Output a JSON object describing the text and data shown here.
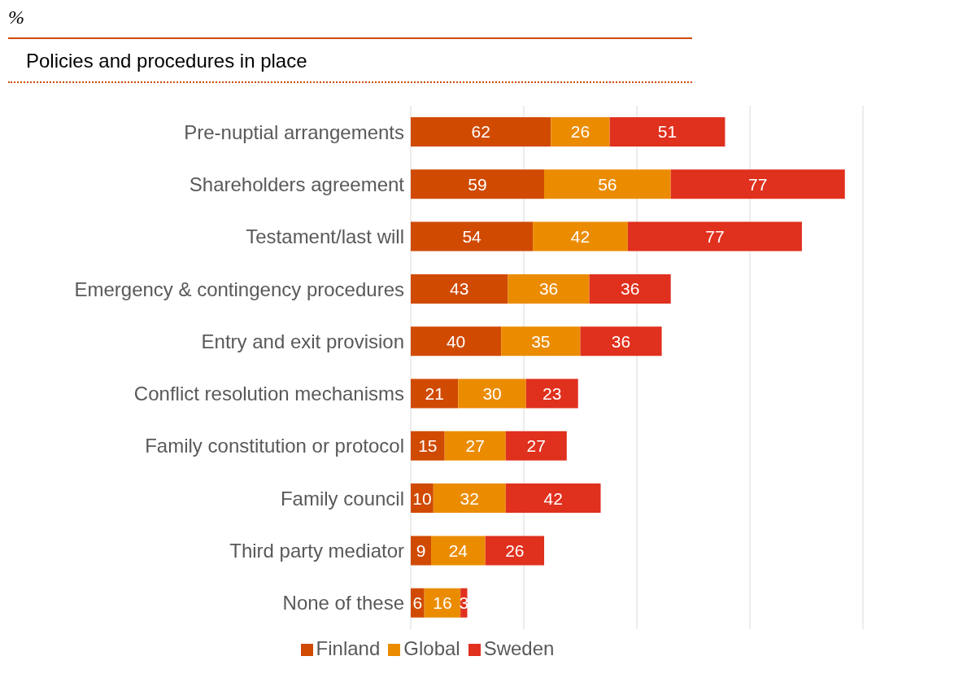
{
  "chart_data": {
    "type": "bar",
    "title": "%",
    "subtitle": "Policies and procedures in place",
    "orientation": "horizontal",
    "stacked": true,
    "data_labels": true,
    "grid": "x",
    "legend": "bottom",
    "tick_labels": "y",
    "categories": [
      "Pre-nuptial arrangements",
      "Shareholders agreement",
      "Testament/last will",
      "Emergency & contingency procedures",
      "Entry and exit provision",
      "Conflict resolution mechanisms",
      "Family constitution or protocol",
      "Family council",
      "Third party mediator",
      "None of these"
    ],
    "xlim": [
      0,
      200
    ],
    "xticks": [
      {
        "value": 0,
        "label": null
      },
      {
        "value": 50,
        "label": null
      },
      {
        "value": 100,
        "label": null
      },
      {
        "value": 150,
        "label": null
      },
      {
        "value": 200,
        "label": null
      }
    ],
    "series": [
      {
        "name": "Finland",
        "color": "#d04a02",
        "values": [
          62,
          59,
          54,
          43,
          40,
          21,
          15,
          10,
          9,
          6
        ]
      },
      {
        "name": "Global",
        "color": "#eb8c00",
        "values": [
          26,
          56,
          42,
          36,
          35,
          30,
          27,
          32,
          24,
          16
        ]
      },
      {
        "name": "Sweden",
        "color": "#e0301e",
        "values": [
          51,
          77,
          77,
          36,
          36,
          23,
          27,
          42,
          26,
          3
        ]
      }
    ]
  }
}
